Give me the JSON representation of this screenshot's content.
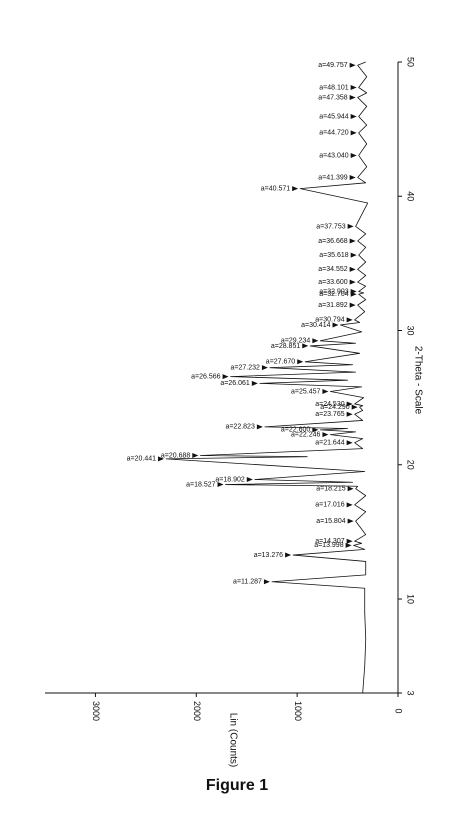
{
  "chart_data": {
    "type": "line",
    "caption": "Figure 1",
    "xlabel": "2-Theta - Scale",
    "ylabel": "Lin (Counts)",
    "xlim": [
      3,
      50
    ],
    "xticks": [
      3,
      10,
      20,
      30,
      40,
      50
    ],
    "ylim": [
      0,
      3500
    ],
    "yticks": [
      0,
      1000,
      2000,
      3000
    ],
    "x": [
      3,
      5,
      7,
      9,
      10.8,
      11.287,
      11.8,
      12.8,
      13.276,
      13.7,
      13.998,
      14.15,
      14.307,
      14.8,
      15.804,
      16.5,
      17.016,
      17.7,
      18.215,
      18.4,
      18.527,
      18.7,
      18.902,
      19.5,
      20.441,
      20.6,
      20.688,
      21.2,
      21.644,
      21.95,
      22.246,
      22.45,
      22.6,
      22.7,
      22.823,
      23.3,
      23.765,
      24.05,
      24.29,
      24.4,
      24.53,
      25.0,
      25.457,
      25.8,
      26.061,
      26.3,
      26.566,
      26.9,
      27.232,
      27.45,
      27.67,
      28.3,
      28.851,
      29.05,
      29.234,
      29.9,
      30.414,
      30.6,
      30.794,
      31.4,
      31.892,
      32.3,
      32.704,
      32.8,
      32.903,
      33.3,
      33.6,
      34.1,
      34.552,
      35.1,
      35.618,
      36.2,
      36.668,
      37.2,
      37.753,
      39.5,
      40.571,
      41.0,
      41.399,
      42.2,
      43.04,
      43.9,
      44.72,
      45.3,
      45.944,
      46.7,
      47.358,
      47.7,
      48.101,
      48.9,
      49.757,
      50
    ],
    "series": [
      {
        "name": "Lin (Counts)",
        "color": "#111111",
        "values": [
          350,
          330,
          320,
          330,
          330,
          1250,
          320,
          320,
          1040,
          330,
          440,
          360,
          430,
          320,
          420,
          320,
          430,
          320,
          420,
          400,
          1710,
          450,
          1420,
          330,
          2300,
          900,
          1960,
          350,
          430,
          350,
          670,
          420,
          770,
          500,
          1320,
          350,
          430,
          350,
          380,
          350,
          430,
          340,
          670,
          360,
          1370,
          500,
          1660,
          420,
          1270,
          450,
          920,
          380,
          870,
          420,
          770,
          360,
          570,
          380,
          430,
          330,
          400,
          320,
          390,
          340,
          390,
          320,
          400,
          320,
          400,
          320,
          390,
          320,
          400,
          320,
          420,
          300,
          970,
          320,
          400,
          310,
          390,
          310,
          390,
          310,
          390,
          310,
          400,
          310,
          390,
          310,
          400,
          320
        ]
      }
    ],
    "annotations": [
      {
        "x": 11.287,
        "text": "a=11.287"
      },
      {
        "x": 13.276,
        "text": "a=13.276"
      },
      {
        "x": 13.998,
        "text": "a=13.998"
      },
      {
        "x": 14.307,
        "text": "a=14.307"
      },
      {
        "x": 15.804,
        "text": "a=15.804"
      },
      {
        "x": 17.016,
        "text": "a=17.016"
      },
      {
        "x": 18.215,
        "text": "a=18.215"
      },
      {
        "x": 18.527,
        "text": "a=18.527"
      },
      {
        "x": 18.902,
        "text": "a=18.902"
      },
      {
        "x": 20.441,
        "text": "a=20.441"
      },
      {
        "x": 20.688,
        "text": "a=20.688"
      },
      {
        "x": 21.644,
        "text": "a=21.644"
      },
      {
        "x": 22.246,
        "text": "a=22.246"
      },
      {
        "x": 22.6,
        "text": "a=22.600"
      },
      {
        "x": 22.823,
        "text": "a=22.823"
      },
      {
        "x": 23.765,
        "text": "a=23.765"
      },
      {
        "x": 24.29,
        "text": "a=24.290"
      },
      {
        "x": 24.53,
        "text": "a=24.530"
      },
      {
        "x": 25.457,
        "text": "a=25.457"
      },
      {
        "x": 26.061,
        "text": "a=26.061"
      },
      {
        "x": 26.566,
        "text": "a=26.566"
      },
      {
        "x": 27.232,
        "text": "a=27.232"
      },
      {
        "x": 27.67,
        "text": "a=27.670"
      },
      {
        "x": 28.851,
        "text": "a=28.851"
      },
      {
        "x": 29.234,
        "text": "a=29.234"
      },
      {
        "x": 30.414,
        "text": "a=30.414"
      },
      {
        "x": 30.794,
        "text": "a=30.794"
      },
      {
        "x": 31.892,
        "text": "a=31.892"
      },
      {
        "x": 32.704,
        "text": "a=32.704"
      },
      {
        "x": 32.903,
        "text": "a=32.903"
      },
      {
        "x": 33.6,
        "text": "a=33.600"
      },
      {
        "x": 34.552,
        "text": "a=34.552"
      },
      {
        "x": 35.618,
        "text": "a=35.618"
      },
      {
        "x": 36.668,
        "text": "a=36.668"
      },
      {
        "x": 37.753,
        "text": "a=37.753"
      },
      {
        "x": 40.571,
        "text": "a=40.571"
      },
      {
        "x": 41.399,
        "text": "a=41.399"
      },
      {
        "x": 43.04,
        "text": "a=43.040"
      },
      {
        "x": 44.72,
        "text": "a=44.720"
      },
      {
        "x": 45.944,
        "text": "a=45.944"
      },
      {
        "x": 47.358,
        "text": "a=47.358"
      },
      {
        "x": 48.101,
        "text": "a=48.101"
      },
      {
        "x": 49.757,
        "text": "a=49.757"
      }
    ]
  }
}
